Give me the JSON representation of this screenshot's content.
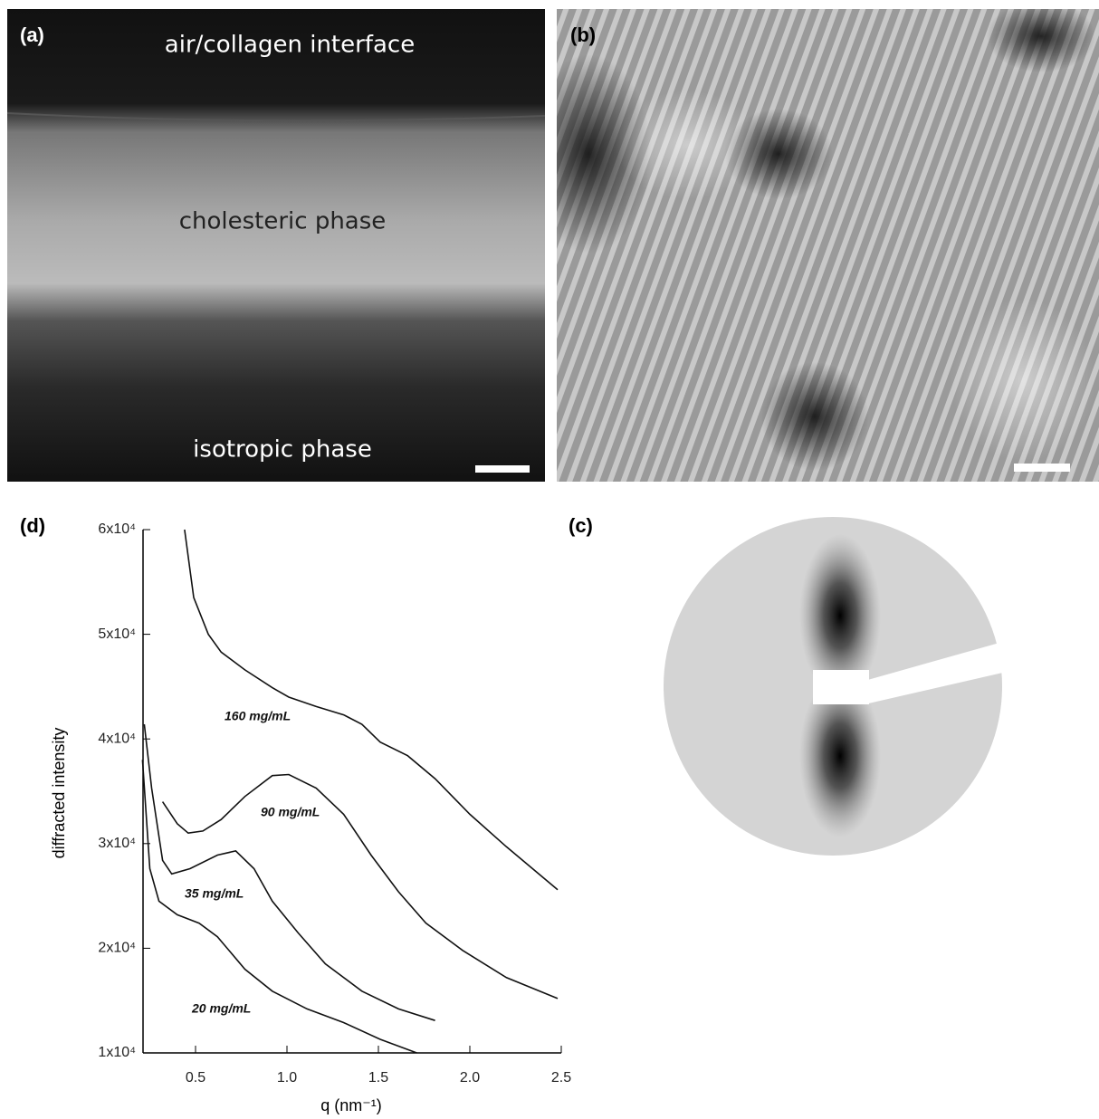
{
  "panels": [
    {
      "label": "(a)",
      "annotations": [
        "air/collagen interface",
        "cholesteric phase",
        "isotropic phase"
      ]
    },
    {
      "label": "(b)"
    },
    {
      "label": "(c)"
    },
    {
      "label": "(d)"
    }
  ],
  "chart_data": {
    "type": "line",
    "xlabel": "q (nm⁻¹)",
    "ylabel": "diffracted intensity",
    "xlim": [
      0.2,
      2.5
    ],
    "ylim": [
      10000,
      60000
    ],
    "xticks": [
      0.5,
      {
        "value": 1,
        "label": "1.0"
      },
      1.5,
      {
        "value": 2,
        "label": "2.0"
      },
      2.5
    ],
    "yticks": [
      {
        "value": 10000,
        "label": "1x10⁴"
      },
      {
        "value": 20000,
        "label": "2x10⁴"
      },
      {
        "value": 30000,
        "label": "3x10⁴"
      },
      {
        "value": 40000,
        "label": "4x10⁴"
      },
      {
        "value": 50000,
        "label": "5x10⁴"
      },
      {
        "value": 60000,
        "label": "6x10⁴"
      }
    ],
    "color": "#111",
    "series": [
      {
        "name": "160 mg/mL",
        "x": [
          0.44,
          0.49,
          0.57,
          0.64,
          0.77,
          0.92,
          1.01,
          1.16,
          1.31,
          1.41,
          1.51,
          1.66,
          1.81,
          2.0,
          2.2,
          2.48
        ],
        "values": [
          60000,
          53500,
          50000,
          48300,
          46600,
          44900,
          44000,
          43100,
          42300,
          41400,
          39700,
          38400,
          36200,
          32800,
          29700,
          25600
        ]
      },
      {
        "name": "90 mg/mL",
        "x": [
          0.32,
          0.4,
          0.46,
          0.54,
          0.64,
          0.77,
          0.92,
          1.01,
          1.16,
          1.31,
          1.46,
          1.61,
          1.76,
          1.96,
          2.2,
          2.48
        ],
        "values": [
          34000,
          31900,
          31000,
          31200,
          32300,
          34500,
          36500,
          36600,
          35300,
          32800,
          28900,
          25400,
          22400,
          19800,
          17200,
          15200
        ]
      },
      {
        "name": "35 mg/mL",
        "x": [
          0.22,
          0.26,
          0.32,
          0.37,
          0.47,
          0.62,
          0.72,
          0.82,
          0.92,
          1.06,
          1.21,
          1.41,
          1.61,
          1.81
        ],
        "values": [
          41400,
          35300,
          28400,
          27100,
          27600,
          28900,
          29300,
          27600,
          24500,
          21500,
          18500,
          15900,
          14200,
          13100
        ]
      },
      {
        "name": "20 mg/mL",
        "x": [
          0.21,
          0.25,
          0.3,
          0.4,
          0.52,
          0.62,
          0.77,
          0.92,
          1.11,
          1.31,
          1.51,
          1.71
        ],
        "values": [
          38000,
          27600,
          24500,
          23200,
          22400,
          21100,
          18000,
          15900,
          14200,
          12900,
          11300,
          10000
        ]
      }
    ]
  }
}
